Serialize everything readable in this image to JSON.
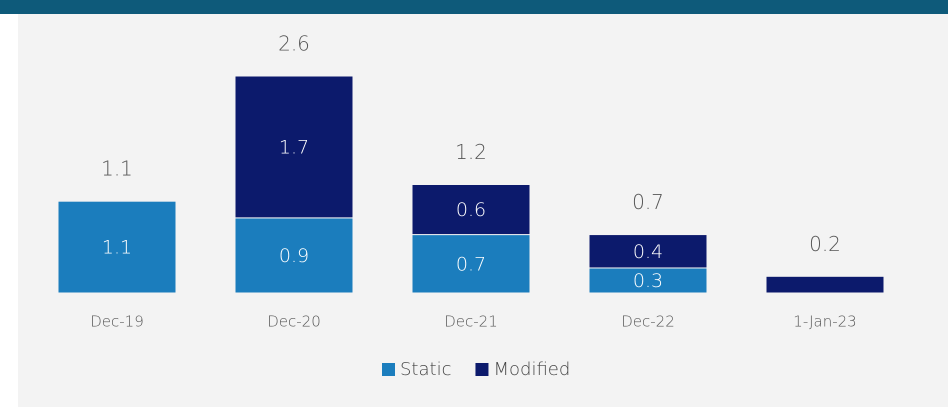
{
  "chart_data": {
    "type": "stacked_bar",
    "categories": [
      "Dec-19",
      "Dec-20",
      "Dec-21",
      "Dec-22",
      "1-Jan-23"
    ],
    "series": [
      {
        "name": "Static",
        "color": "#1b7dbd",
        "values": [
          1.1,
          0.9,
          0.7,
          0.3,
          null
        ],
        "value_labels": [
          "1.1",
          "0.9",
          "0.7",
          "0.3",
          null
        ]
      },
      {
        "name": "Modified",
        "color": "#0c1a6c",
        "values": [
          null,
          1.7,
          0.6,
          0.4,
          0.2
        ],
        "value_labels": [
          null,
          "1.7",
          "0.6",
          "0.4",
          null
        ]
      }
    ],
    "totals": [
      1.1,
      2.6,
      1.2,
      0.7,
      0.2
    ]
  }
}
